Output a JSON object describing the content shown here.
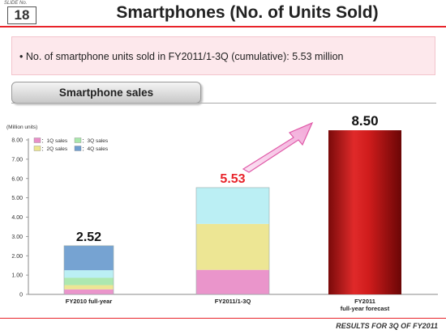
{
  "header": {
    "slide_label": "SLIDE No.",
    "slide_number": "18",
    "title": "Smartphones (No. of Units Sold)"
  },
  "summary": {
    "text": "• No. of smartphone units sold in FY2011/1-3Q (cumulative): 5.53 million"
  },
  "section": {
    "title": "Smartphone sales"
  },
  "footer": {
    "text": "RESULTS FOR 3Q OF FY2011"
  },
  "colors": {
    "accent_red": "#e8232a",
    "label_red": "#e8232a",
    "q1": "#e98fc8",
    "q2": "#ece58e",
    "q3": "#a9e7ac",
    "q4": "#6f9ed0",
    "stack_top": "#b7eef3",
    "forecast": "#c51b1b"
  },
  "chart_data": {
    "type": "bar",
    "stacked": true,
    "unit_label": "(Million units)",
    "ylim": [
      0,
      8.0
    ],
    "yticks": [
      "0",
      "1.00",
      "2.00",
      "3.00",
      "4.00",
      "5.00",
      "6.00",
      "7.00",
      "8.00"
    ],
    "grid": false,
    "legend": [
      "：1Q sales",
      "：2Q sales",
      "：3Q sales",
      "：4Q sales"
    ],
    "legend_position": "top-left",
    "categories": [
      "FY2010 full-year",
      "FY2011/1-3Q",
      "FY2011\nfull-year forecast"
    ],
    "bars": [
      {
        "category": "FY2010 full-year",
        "total": 2.52,
        "label": "2.52",
        "label_color": "#111111",
        "segments": [
          {
            "name": "1Q",
            "value": 0.26,
            "color": "#e98fc8"
          },
          {
            "name": "2Q",
            "value": 0.22,
            "color": "#ece58e"
          },
          {
            "name": "3Q",
            "value": 0.38,
            "color": "#a9e7ac"
          },
          {
            "name": "",
            "value": 0.39,
            "color": "#b7eef3"
          },
          {
            "name": "4Q",
            "value": 1.27,
            "color": "#6f9ed0"
          }
        ]
      },
      {
        "category": "FY2011/1-3Q",
        "total": 5.53,
        "label": "5.53",
        "label_color": "#e8232a",
        "segments": [
          {
            "name": "1Q",
            "value": 1.27,
            "color": "#e98fc8"
          },
          {
            "name": "2Q",
            "value": 2.38,
            "color": "#ece58e"
          },
          {
            "name": "3Q",
            "value": 1.88,
            "color": "#b7eef3"
          }
        ]
      },
      {
        "category": "FY2011 full-year forecast",
        "total": 8.5,
        "label": "8.50",
        "label_color": "#111111",
        "segments": [
          {
            "name": "Forecast",
            "value": 8.5,
            "color": "#c51b1b"
          }
        ]
      }
    ]
  }
}
